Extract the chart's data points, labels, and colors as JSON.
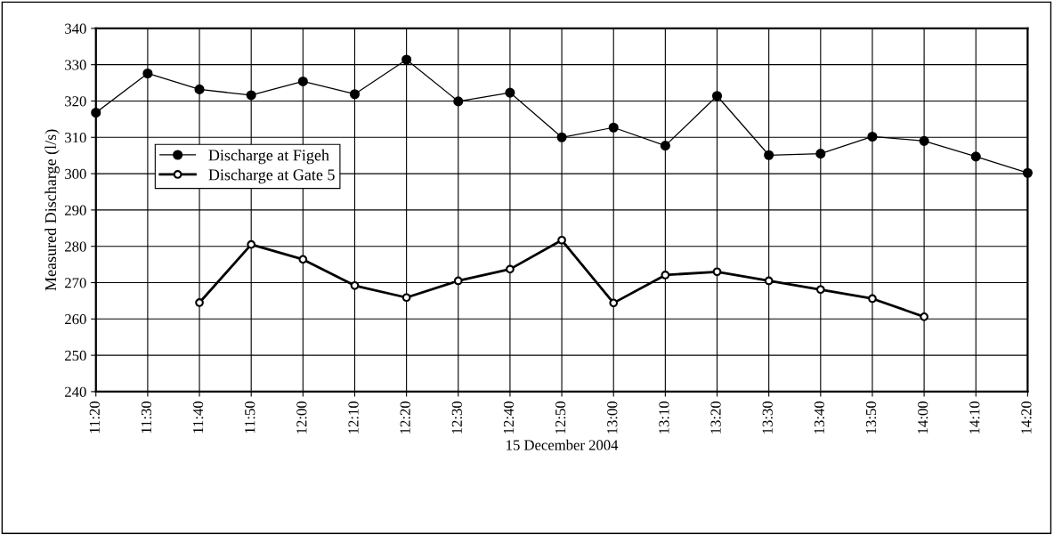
{
  "chart_data": {
    "type": "line",
    "xlabel": "15 December 2004",
    "ylabel": "Measured Discharge (l/s)",
    "categories": [
      "11:20",
      "11:30",
      "11:40",
      "11:50",
      "12:00",
      "12:10",
      "12:20",
      "12:30",
      "12:40",
      "12:50",
      "13:00",
      "13:10",
      "13:20",
      "13:30",
      "13:40",
      "13:50",
      "14:00",
      "14:10",
      "14:20"
    ],
    "series": [
      {
        "name": "Discharge at Figeh",
        "color": "#000000",
        "values": [
          316.8,
          327.6,
          323.2,
          321.6,
          325.4,
          321.9,
          331.4,
          319.9,
          322.3,
          310.0,
          312.7,
          307.7,
          321.4,
          305.1,
          305.5,
          310.2,
          309.0,
          304.7,
          300.2
        ]
      },
      {
        "name": "Discharge at Gate 5",
        "color": "#000000",
        "values": [
          null,
          null,
          264.5,
          280.5,
          276.4,
          269.2,
          265.9,
          270.5,
          273.7,
          281.7,
          264.4,
          272.1,
          273.0,
          270.5,
          268.1,
          265.6,
          260.6,
          null,
          null
        ]
      }
    ],
    "ylim": [
      240,
      340
    ],
    "yticks": [
      240,
      250,
      260,
      270,
      280,
      290,
      300,
      310,
      320,
      330,
      340
    ],
    "grid": true,
    "legend": "left",
    "marker": "circle",
    "line_style": "solid"
  }
}
